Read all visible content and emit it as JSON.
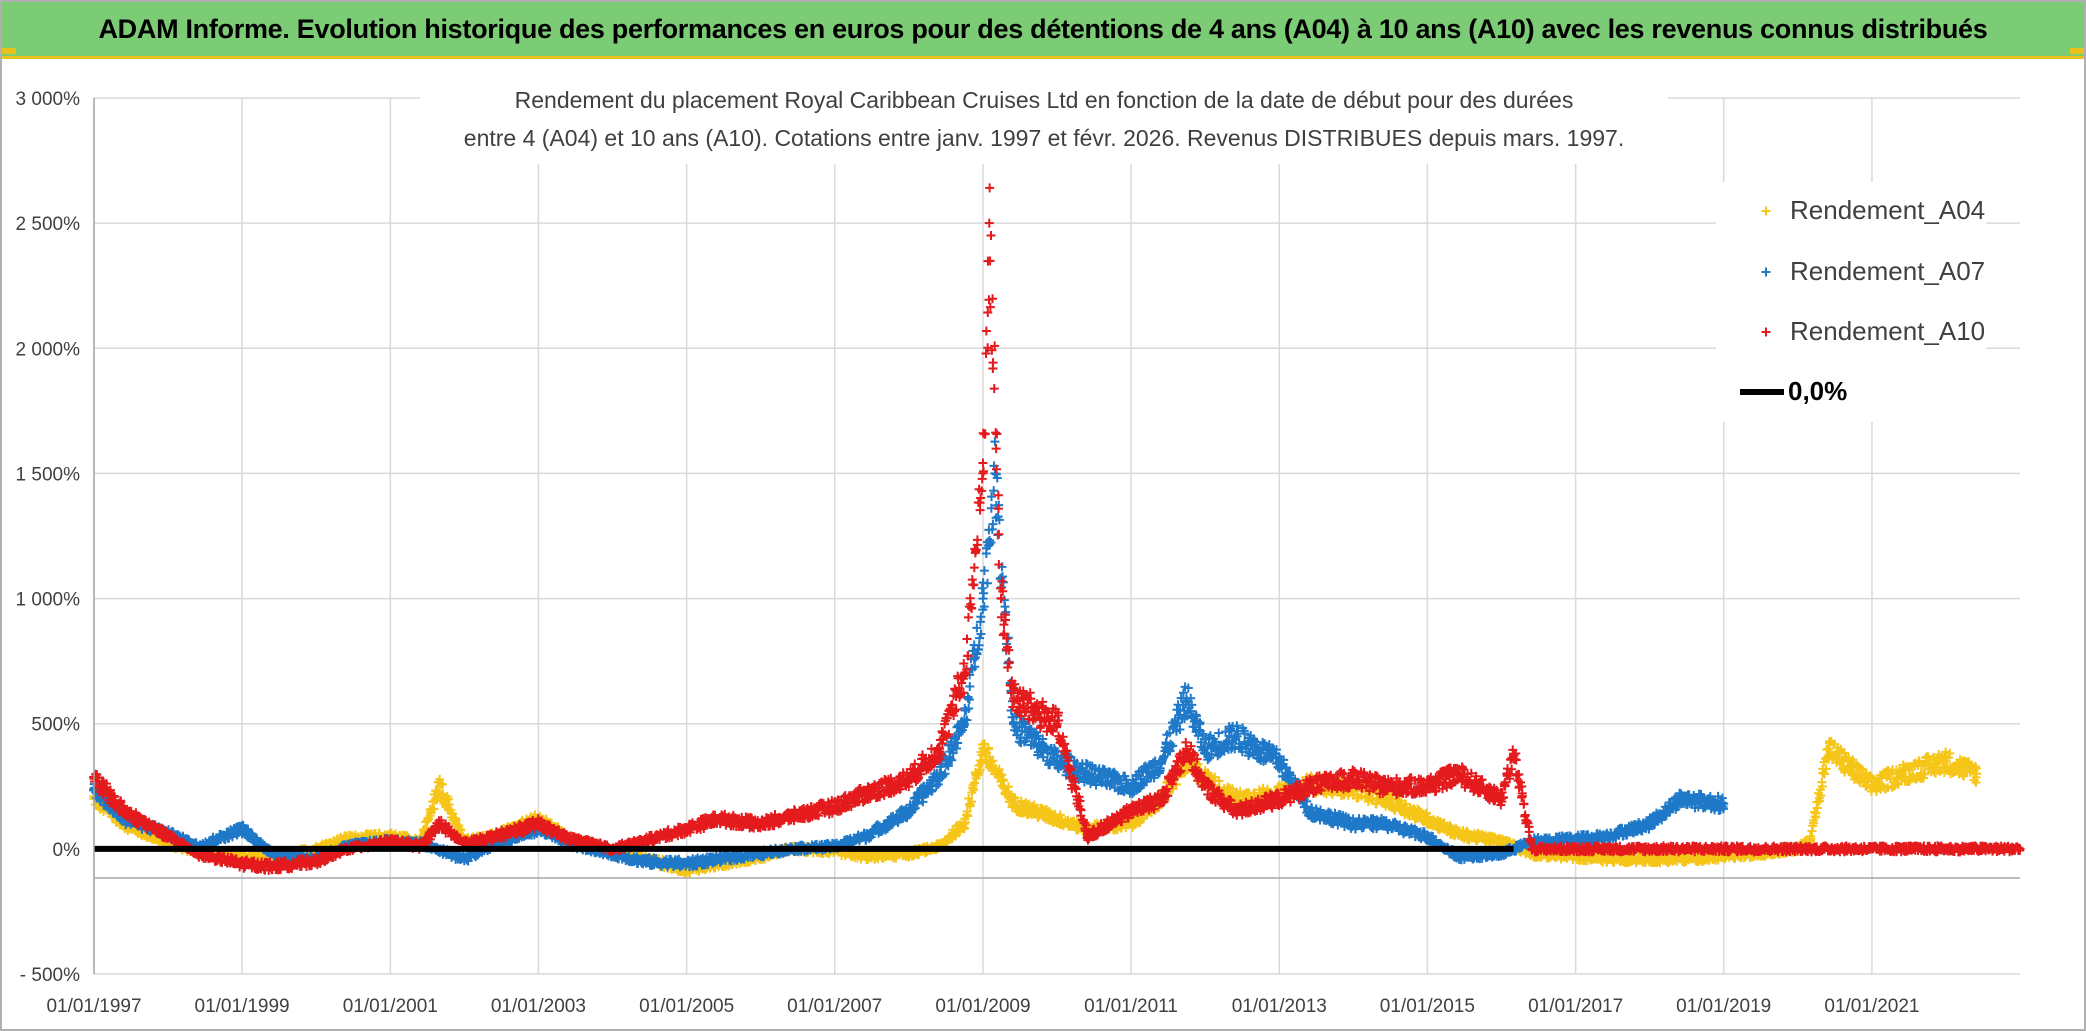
{
  "banner": {
    "title": "ADAM Informe. Evolution historique des performances en euros pour des détentions de 4 ans (A04) à 10 ans (A10) avec les revenus connus distribués"
  },
  "chart_data": {
    "type": "scatter",
    "title_line1": "Rendement du placement Royal Caribbean Cruises Ltd en fonction de la date de début pour des durées",
    "title_line2": "entre 4 (A04) et 10 ans (A10). Cotations entre janv. 1997 et févr. 2026. Revenus DISTRIBUES depuis mars. 1997.",
    "xlabel": "",
    "ylabel": "",
    "x_range": [
      "1997-01-01",
      "2023-01-01"
    ],
    "y_range": [
      -500,
      3000
    ],
    "y_ticks": [
      -500,
      0,
      500,
      1000,
      1500,
      2000,
      2500,
      3000
    ],
    "y_tick_labels": [
      "- 500%",
      "0%",
      "500%",
      "1 000%",
      "1 500%",
      "2 000%",
      "2 500%",
      "3 000%"
    ],
    "x_ticks": [
      "1997-01-01",
      "1999-01-01",
      "2001-01-01",
      "2003-01-01",
      "2005-01-01",
      "2007-01-01",
      "2009-01-01",
      "2011-01-01",
      "2013-01-01",
      "2015-01-01",
      "2017-01-01",
      "2019-01-01",
      "2021-01-01"
    ],
    "x_tick_labels": [
      "01/01/1997",
      "01/01/1999",
      "01/01/2001",
      "01/01/2003",
      "01/01/2005",
      "01/01/2007",
      "01/01/2009",
      "01/01/2011",
      "01/01/2013",
      "01/01/2015",
      "01/01/2017",
      "01/01/2019",
      "01/01/2021"
    ],
    "grid": true,
    "legend_position": "top-right",
    "series": [
      {
        "name": "Rendement_A04",
        "marker": "plus",
        "color": "#f5c518",
        "x": [
          "1997-01-01",
          "1997-06-01",
          "1998-01-01",
          "1998-06-01",
          "1999-01-01",
          "1999-06-01",
          "2000-01-01",
          "2000-06-01",
          "2001-01-01",
          "2001-06-01",
          "2001-09-01",
          "2002-01-01",
          "2002-06-01",
          "2003-01-01",
          "2003-06-01",
          "2004-01-01",
          "2004-06-01",
          "2005-01-01",
          "2005-06-01",
          "2006-01-01",
          "2006-06-01",
          "2007-01-01",
          "2007-06-01",
          "2008-01-01",
          "2008-06-01",
          "2008-10-01",
          "2009-01-01",
          "2009-06-01",
          "2010-01-01",
          "2010-06-01",
          "2011-01-01",
          "2011-06-01",
          "2011-10-01",
          "2012-01-01",
          "2012-06-01",
          "2013-01-01",
          "2013-06-01",
          "2014-01-01",
          "2014-06-01",
          "2015-01-01",
          "2015-06-01",
          "2016-01-01",
          "2016-06-01",
          "2017-01-01",
          "2017-06-01",
          "2018-01-01",
          "2018-06-01",
          "2019-01-01",
          "2019-06-01",
          "2020-01-01",
          "2020-03-01",
          "2020-06-01",
          "2021-01-01",
          "2021-06-01",
          "2022-01-01",
          "2022-06-01"
        ],
        "y": [
          200,
          100,
          20,
          -10,
          -30,
          -40,
          0,
          40,
          50,
          30,
          250,
          30,
          50,
          120,
          40,
          -10,
          -40,
          -80,
          -60,
          -30,
          0,
          -10,
          -30,
          -20,
          10,
          100,
          400,
          180,
          120,
          80,
          100,
          200,
          350,
          280,
          200,
          220,
          260,
          240,
          200,
          120,
          60,
          30,
          -20,
          -30,
          -40,
          -40,
          -40,
          -30,
          -20,
          0,
          30,
          400,
          250,
          300,
          350,
          300
        ]
      },
      {
        "name": "Rendement_A07",
        "marker": "plus",
        "color": "#1f78c8",
        "x": [
          "1997-01-01",
          "1997-06-01",
          "1998-01-01",
          "1998-06-01",
          "1999-01-01",
          "1999-06-01",
          "2000-01-01",
          "2000-06-01",
          "2001-01-01",
          "2001-06-01",
          "2002-01-01",
          "2002-06-01",
          "2003-01-01",
          "2003-06-01",
          "2004-01-01",
          "2004-06-01",
          "2005-01-01",
          "2005-06-01",
          "2006-01-01",
          "2006-06-01",
          "2007-01-01",
          "2007-06-01",
          "2008-01-01",
          "2008-06-01",
          "2008-10-01",
          "2009-01-01",
          "2009-03-01",
          "2009-06-01",
          "2010-01-01",
          "2010-06-01",
          "2011-01-01",
          "2011-06-01",
          "2011-10-01",
          "2012-01-01",
          "2012-06-01",
          "2013-01-01",
          "2013-06-01",
          "2014-01-01",
          "2014-06-01",
          "2015-01-01",
          "2015-06-01",
          "2016-01-01",
          "2016-06-01",
          "2017-01-01",
          "2017-06-01",
          "2018-01-01",
          "2018-06-01",
          "2019-01-01"
        ],
        "y": [
          240,
          120,
          60,
          10,
          80,
          -20,
          -40,
          10,
          30,
          20,
          -40,
          20,
          80,
          20,
          -20,
          -50,
          -60,
          -40,
          -20,
          0,
          10,
          50,
          150,
          300,
          500,
          1000,
          1500,
          500,
          350,
          300,
          250,
          350,
          600,
          400,
          450,
          350,
          150,
          100,
          100,
          50,
          -30,
          -20,
          30,
          40,
          50,
          100,
          200,
          180
        ]
      },
      {
        "name": "Rendement_A10",
        "marker": "plus",
        "color": "#e41a1c",
        "x": [
          "1997-01-01",
          "1997-06-01",
          "1998-01-01",
          "1998-06-01",
          "1999-01-01",
          "1999-06-01",
          "2000-01-01",
          "2000-06-01",
          "2001-01-01",
          "2001-06-01",
          "2001-09-01",
          "2002-01-01",
          "2002-06-01",
          "2003-01-01",
          "2003-06-01",
          "2004-01-01",
          "2004-06-01",
          "2005-01-01",
          "2005-06-01",
          "2006-01-01",
          "2006-06-01",
          "2007-01-01",
          "2007-06-01",
          "2008-01-01",
          "2008-06-01",
          "2008-10-01",
          "2009-01-01",
          "2009-02-01",
          "2009-04-01",
          "2009-06-01",
          "2010-01-01",
          "2010-06-01",
          "2011-01-01",
          "2011-06-01",
          "2011-10-01",
          "2012-01-01",
          "2012-06-01",
          "2013-01-01",
          "2013-06-01",
          "2014-01-01",
          "2014-06-01",
          "2015-01-01",
          "2015-06-01",
          "2016-01-01",
          "2016-03-01",
          "2016-06-01",
          "2017-01-01",
          "2018-01-01",
          "2019-01-01",
          "2020-01-01",
          "2021-01-01",
          "2022-01-01",
          "2023-01-01"
        ],
        "y": [
          280,
          150,
          50,
          -20,
          -60,
          -70,
          -50,
          0,
          30,
          10,
          100,
          20,
          50,
          100,
          40,
          0,
          30,
          80,
          120,
          100,
          130,
          170,
          220,
          280,
          400,
          700,
          1500,
          2500,
          1000,
          600,
          500,
          50,
          150,
          200,
          400,
          250,
          150,
          200,
          250,
          280,
          250,
          250,
          300,
          200,
          380,
          0,
          0,
          0,
          0,
          0,
          0,
          0,
          0
        ]
      },
      {
        "name": "0,0%",
        "marker": "line",
        "color": "#000000",
        "x": [
          "1997-01-01",
          "2016-03-01"
        ],
        "y": [
          0,
          0
        ]
      }
    ]
  }
}
